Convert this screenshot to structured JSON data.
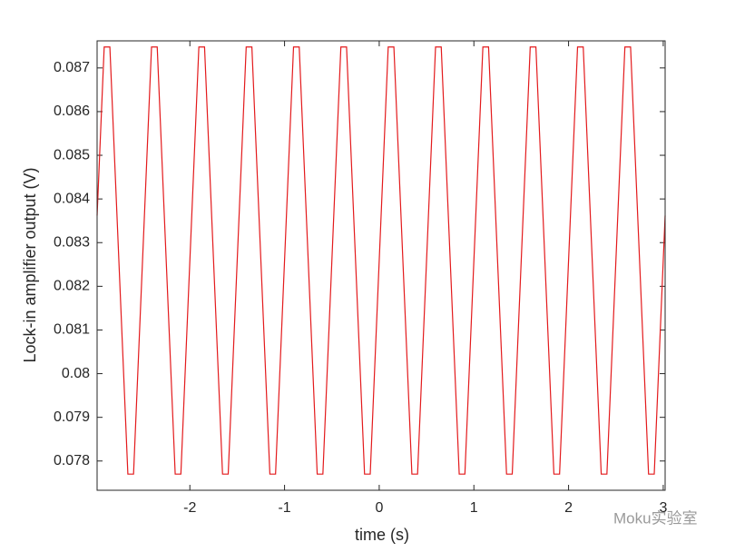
{
  "chart_data": {
    "type": "line",
    "xlabel": "time (s)",
    "ylabel": "Lock-in amplifier output (V)",
    "watermark": "Moku实验室",
    "x": [
      -2.98,
      -2.905,
      -2.845,
      -2.655,
      -2.595,
      -2.405,
      -2.345,
      -2.155,
      -2.095,
      -1.905,
      -1.845,
      -1.655,
      -1.595,
      -1.405,
      -1.345,
      -1.155,
      -1.095,
      -0.905,
      -0.845,
      -0.655,
      -0.595,
      -0.405,
      -0.345,
      -0.155,
      -0.095,
      0.095,
      0.155,
      0.345,
      0.405,
      0.595,
      0.655,
      0.845,
      0.905,
      1.095,
      1.155,
      1.345,
      1.405,
      1.595,
      1.655,
      1.845,
      1.905,
      2.095,
      2.155,
      2.345,
      2.405,
      2.595,
      2.655,
      2.845,
      2.905,
      3.02
    ],
    "series": [
      {
        "color": "#e31a1c",
        "values": [
          0.08362,
          0.08748,
          0.08748,
          0.0777,
          0.0777,
          0.08748,
          0.08748,
          0.0777,
          0.0777,
          0.08748,
          0.08748,
          0.0777,
          0.0777,
          0.08748,
          0.08748,
          0.0777,
          0.0777,
          0.08748,
          0.08748,
          0.0777,
          0.0777,
          0.08748,
          0.08748,
          0.0777,
          0.0777,
          0.08748,
          0.08748,
          0.0777,
          0.0777,
          0.08748,
          0.08748,
          0.0777,
          0.0777,
          0.08748,
          0.08748,
          0.0777,
          0.0777,
          0.08748,
          0.08748,
          0.0777,
          0.0777,
          0.08748,
          0.08748,
          0.0777,
          0.0777,
          0.08748,
          0.08748,
          0.0777,
          0.0777,
          0.08362
        ]
      }
    ],
    "xlim": [
      -2.98,
      3.02
    ],
    "ylim": [
      0.07733,
      0.08762
    ],
    "xticks": [
      -2,
      -1,
      0,
      1,
      2,
      3
    ],
    "yticks": [
      0.078,
      0.079,
      0.08,
      0.081,
      0.082,
      0.083,
      0.084,
      0.085,
      0.086,
      0.087
    ],
    "grid": false
  }
}
